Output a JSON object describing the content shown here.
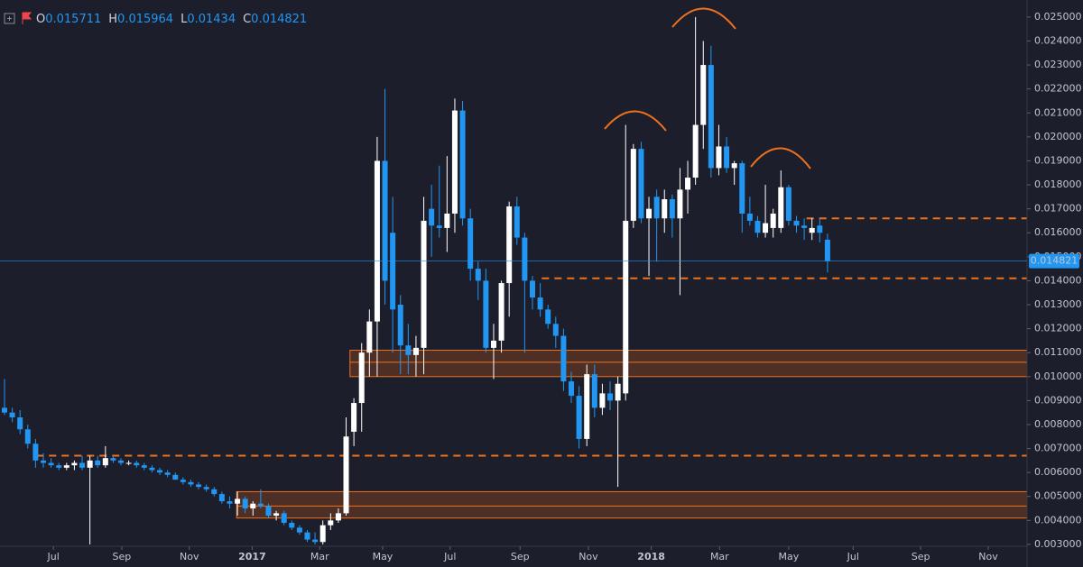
{
  "chart_data": {
    "type": "candlestick",
    "up_color": "#ffffff",
    "down_color": "#2196f3",
    "level_color": "#f0711d",
    "zone_color": "#5a3326",
    "header_letters": [
      "O",
      "H",
      "L",
      "C"
    ],
    "open": [
      0.0087,
      0.0085,
      0.0083,
      0.0078,
      0.0072,
      0.0065,
      0.0064,
      0.0063,
      0.0062,
      0.0063,
      0.0064,
      0.0062,
      0.0065,
      0.0063,
      0.0066,
      0.0065,
      0.0064,
      0.0064,
      0.0063,
      0.0062,
      0.0061,
      0.006,
      0.0059,
      0.0057,
      0.0056,
      0.0055,
      0.0054,
      0.0053,
      0.0051,
      0.0048,
      0.0047,
      0.0049,
      0.0045,
      0.0047,
      0.0046,
      0.0042,
      0.0043,
      0.0039,
      0.0037,
      0.0035,
      0.0032,
      0.0031,
      0.0038,
      0.004,
      0.0043,
      0.0077,
      0.0089,
      0.011,
      0.0123,
      0.019,
      0.016,
      0.013,
      0.0113,
      0.0109,
      0.0112,
      0.017,
      0.0163,
      0.0162,
      0.0168,
      0.0211,
      0.0166,
      0.0145,
      0.014,
      0.0112,
      0.0115,
      0.0139,
      0.0171,
      0.0158,
      0.014,
      0.0133,
      0.0128,
      0.0122,
      0.0117,
      0.0098,
      0.0092,
      0.0074,
      0.0101,
      0.0087,
      0.0093,
      0.009,
      0.0093,
      0.0165,
      0.0195,
      0.0166,
      0.0175,
      0.0166,
      0.0174,
      0.0166,
      0.0178,
      0.0183,
      0.0205,
      0.023,
      0.0187,
      0.0196,
      0.0187,
      0.0189,
      0.0168,
      0.0165,
      0.016,
      0.0162,
      0.0162,
      0.0179,
      0.0165,
      0.0163,
      0.016,
      0.0163,
      0.015711
    ],
    "high": [
      0.0099,
      0.0087,
      0.0086,
      0.008,
      0.0074,
      0.0068,
      0.0066,
      0.0064,
      0.0064,
      0.0065,
      0.0067,
      0.0067,
      0.0067,
      0.0071,
      0.0067,
      0.0066,
      0.0065,
      0.0065,
      0.0064,
      0.0063,
      0.0062,
      0.0061,
      0.006,
      0.0058,
      0.0057,
      0.0056,
      0.0055,
      0.0054,
      0.0052,
      0.005,
      0.0052,
      0.005,
      0.0048,
      0.0053,
      0.0047,
      0.0044,
      0.0044,
      0.004,
      0.0038,
      0.0036,
      0.0035,
      0.004,
      0.0043,
      0.0045,
      0.0083,
      0.0091,
      0.0114,
      0.0128,
      0.02,
      0.022,
      0.0175,
      0.0134,
      0.0122,
      0.0117,
      0.0175,
      0.018,
      0.0188,
      0.0192,
      0.0216,
      0.0215,
      0.017,
      0.0148,
      0.0145,
      0.0122,
      0.014,
      0.0173,
      0.0175,
      0.016,
      0.0142,
      0.0139,
      0.013,
      0.0125,
      0.012,
      0.0102,
      0.0096,
      0.0105,
      0.0105,
      0.0097,
      0.0098,
      0.01,
      0.0205,
      0.0197,
      0.0198,
      0.0175,
      0.0178,
      0.0178,
      0.0176,
      0.0187,
      0.019,
      0.025,
      0.024,
      0.0238,
      0.0205,
      0.02,
      0.019,
      0.019,
      0.0175,
      0.0167,
      0.018,
      0.017,
      0.0186,
      0.018,
      0.0167,
      0.0166,
      0.0166,
      0.0166,
      0.015964
    ],
    "low": [
      0.0084,
      0.0081,
      0.0076,
      0.007,
      0.0062,
      0.0062,
      0.0062,
      0.0061,
      0.0061,
      0.0061,
      0.0061,
      0.003,
      0.0062,
      0.0062,
      0.0064,
      0.0063,
      0.0063,
      0.0062,
      0.0061,
      0.006,
      0.0059,
      0.0058,
      0.0057,
      0.0055,
      0.0054,
      0.0053,
      0.0052,
      0.005,
      0.0047,
      0.0045,
      0.0042,
      0.0043,
      0.0042,
      0.0045,
      0.0041,
      0.004,
      0.0038,
      0.0036,
      0.0034,
      0.0031,
      0.003,
      0.003,
      0.0036,
      0.0039,
      0.0042,
      0.0071,
      0.0077,
      0.01,
      0.01,
      0.013,
      0.011,
      0.0101,
      0.0101,
      0.01,
      0.0101,
      0.015,
      0.0158,
      0.0152,
      0.016,
      0.0163,
      0.014,
      0.0132,
      0.011,
      0.0099,
      0.011,
      0.0125,
      0.0155,
      0.011,
      0.0128,
      0.0125,
      0.012,
      0.0112,
      0.0094,
      0.0089,
      0.007,
      0.0071,
      0.0083,
      0.0084,
      0.0086,
      0.0054,
      0.009,
      0.0162,
      0.0164,
      0.0142,
      0.0148,
      0.016,
      0.0158,
      0.0134,
      0.0168,
      0.018,
      0.0195,
      0.0183,
      0.0184,
      0.0185,
      0.018,
      0.016,
      0.0163,
      0.0158,
      0.0158,
      0.0158,
      0.016,
      0.0163,
      0.016,
      0.0157,
      0.0157,
      0.0156,
      0.01434
    ],
    "close": [
      0.0085,
      0.0083,
      0.0078,
      0.0072,
      0.0065,
      0.0064,
      0.0063,
      0.0062,
      0.0063,
      0.0064,
      0.0062,
      0.0065,
      0.0063,
      0.0066,
      0.0065,
      0.0064,
      0.0064,
      0.0063,
      0.0062,
      0.0061,
      0.006,
      0.0059,
      0.0057,
      0.0056,
      0.0055,
      0.0054,
      0.0053,
      0.0051,
      0.0048,
      0.0047,
      0.0049,
      0.0045,
      0.0047,
      0.0046,
      0.0042,
      0.0043,
      0.0039,
      0.0037,
      0.0035,
      0.0032,
      0.0031,
      0.0038,
      0.004,
      0.0043,
      0.0075,
      0.0089,
      0.011,
      0.0123,
      0.019,
      0.014,
      0.0128,
      0.0113,
      0.0109,
      0.0112,
      0.0165,
      0.0163,
      0.0162,
      0.0168,
      0.0211,
      0.0166,
      0.0145,
      0.014,
      0.0112,
      0.0115,
      0.0139,
      0.0171,
      0.0158,
      0.014,
      0.0133,
      0.0128,
      0.0122,
      0.0117,
      0.0098,
      0.0092,
      0.0074,
      0.0101,
      0.0087,
      0.0093,
      0.009,
      0.0097,
      0.0165,
      0.0195,
      0.0166,
      0.017,
      0.0166,
      0.0174,
      0.0166,
      0.0178,
      0.0183,
      0.0205,
      0.023,
      0.0187,
      0.0196,
      0.0187,
      0.0189,
      0.0168,
      0.0165,
      0.016,
      0.0164,
      0.0168,
      0.0179,
      0.0165,
      0.0163,
      0.0162,
      0.0162,
      0.016,
      0.014821
    ],
    "xlim": [
      -0.58,
      131.7
    ],
    "xticks": [
      {
        "value": 6.3,
        "label": "Jul"
      },
      {
        "value": 15.1,
        "label": "Sep"
      },
      {
        "value": 23.8,
        "label": "Nov"
      },
      {
        "value": 31.9,
        "label": "2017"
      },
      {
        "value": 40.6,
        "label": "Mar"
      },
      {
        "value": 48.7,
        "label": "May"
      },
      {
        "value": 57.4,
        "label": "Jul"
      },
      {
        "value": 66.4,
        "label": "Sep"
      },
      {
        "value": 75.2,
        "label": "Nov"
      },
      {
        "value": 83.3,
        "label": "2018"
      },
      {
        "value": 92.1,
        "label": "Mar"
      },
      {
        "value": 101.0,
        "label": "May"
      },
      {
        "value": 109.3,
        "label": "Jul"
      },
      {
        "value": 118.0,
        "label": "Sep"
      },
      {
        "value": 126.7,
        "label": "Nov"
      }
    ],
    "ylim": [
      0.00296,
      0.02571
    ],
    "yticks": [
      {
        "value": 0.003,
        "label": "0.003000"
      },
      {
        "value": 0.004,
        "label": "0.004000"
      },
      {
        "value": 0.005,
        "label": "0.005000"
      },
      {
        "value": 0.006,
        "label": "0.006000"
      },
      {
        "value": 0.007,
        "label": "0.007000"
      },
      {
        "value": 0.008,
        "label": "0.008000"
      },
      {
        "value": 0.009,
        "label": "0.009000"
      },
      {
        "value": 0.01,
        "label": "0.010000"
      },
      {
        "value": 0.011,
        "label": "0.011000"
      },
      {
        "value": 0.012,
        "label": "0.012000"
      },
      {
        "value": 0.013,
        "label": "0.013000"
      },
      {
        "value": 0.014,
        "label": "0.014000"
      },
      {
        "value": 0.015,
        "label": "0.015000"
      },
      {
        "value": 0.016,
        "label": "0.016000"
      },
      {
        "value": 0.017,
        "label": "0.017000"
      },
      {
        "value": 0.018,
        "label": "0.018000"
      },
      {
        "value": 0.019,
        "label": "0.019000"
      },
      {
        "value": 0.02,
        "label": "0.020000"
      },
      {
        "value": 0.021,
        "label": "0.021000"
      },
      {
        "value": 0.022,
        "label": "0.022000"
      },
      {
        "value": 0.023,
        "label": "0.023000"
      },
      {
        "value": 0.024,
        "label": "0.024000"
      },
      {
        "value": 0.025,
        "label": "0.025000"
      }
    ],
    "levels": [
      {
        "value": 0.0166,
        "from": 103.3
      },
      {
        "value": 0.0141,
        "from": 69.2
      },
      {
        "value": 0.0067,
        "from": 4.1
      }
    ],
    "zones": [
      {
        "low": 0.01,
        "high": 0.0111,
        "mid": 0.0106,
        "from": 44.5
      },
      {
        "low": 0.0041,
        "high": 0.0052,
        "mid": 0.0046,
        "from": 29.9
      }
    ]
  }
}
